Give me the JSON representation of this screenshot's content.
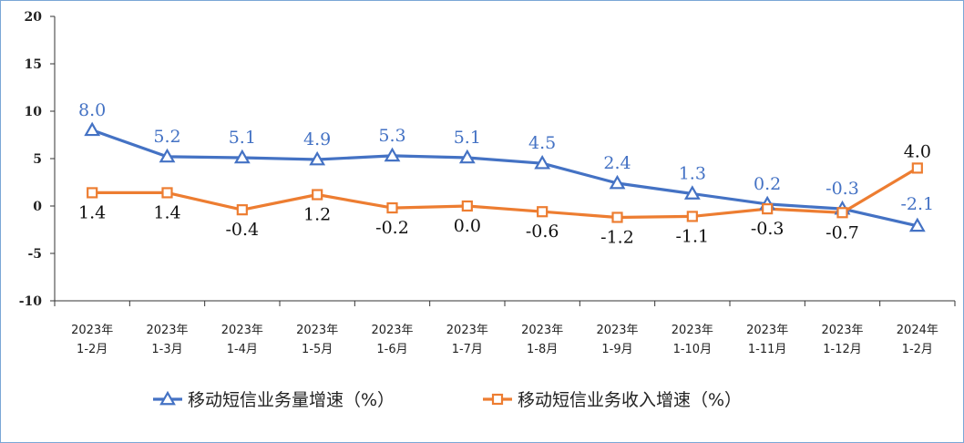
{
  "chart_data": {
    "type": "line",
    "title": "",
    "xlabel": "",
    "ylabel": "",
    "ylim": [
      -10,
      20
    ],
    "yticks": [
      20,
      15,
      10,
      5,
      0,
      -5,
      -10
    ],
    "categories": [
      [
        "2023年",
        "1-2月"
      ],
      [
        "2023年",
        "1-3月"
      ],
      [
        "2023年",
        "1-4月"
      ],
      [
        "2023年",
        "1-5月"
      ],
      [
        "2023年",
        "1-6月"
      ],
      [
        "2023年",
        "1-7月"
      ],
      [
        "2023年",
        "1-8月"
      ],
      [
        "2023年",
        "1-9月"
      ],
      [
        "2023年",
        "1-10月"
      ],
      [
        "2023年",
        "1-11月"
      ],
      [
        "2023年",
        "1-12月"
      ],
      [
        "2024年",
        "1-2月"
      ]
    ],
    "series": [
      {
        "name": "移动短信业务量增速（%）",
        "color": "#4472c4",
        "marker": "triangle",
        "values": [
          8.0,
          5.2,
          5.1,
          4.9,
          5.3,
          5.1,
          4.5,
          2.4,
          1.3,
          0.2,
          -0.3,
          -2.1
        ],
        "labels": [
          "8.0",
          "5.2",
          "5.1",
          "4.9",
          "5.3",
          "5.1",
          "4.5",
          "2.4",
          "1.3",
          "0.2",
          "-0.3",
          "-2.1"
        ]
      },
      {
        "name": "移动短信业务收入增速（%）",
        "color": "#ed7d31",
        "marker": "square",
        "values": [
          1.4,
          1.4,
          -0.4,
          1.2,
          -0.2,
          0.0,
          -0.6,
          -1.2,
          -1.1,
          -0.3,
          -0.7,
          4.0
        ],
        "labels": [
          "1.4",
          "1.4",
          "-0.4",
          "1.2",
          "-0.2",
          "0.0",
          "-0.6",
          "-1.2",
          "-1.1",
          "-0.3",
          "-0.7",
          "4.0"
        ]
      }
    ],
    "grid": false,
    "legend": "bottom"
  }
}
